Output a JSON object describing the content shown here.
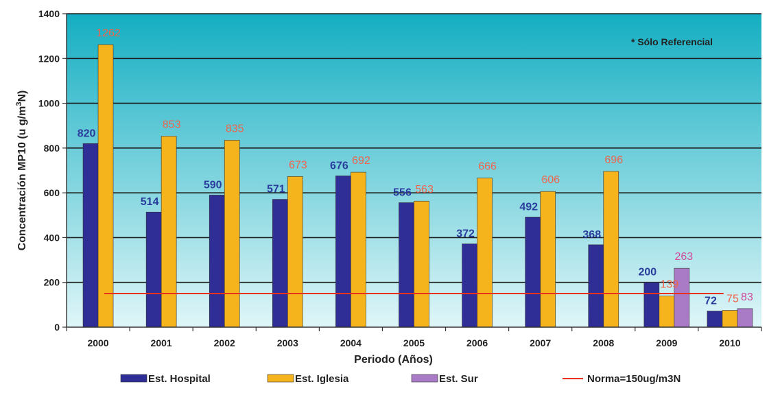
{
  "chart_data": {
    "type": "bar",
    "categories": [
      "2000",
      "2001",
      "2002",
      "2003",
      "2004",
      "2005",
      "2006",
      "2007",
      "2008",
      "2009",
      "2010"
    ],
    "series": [
      {
        "name": "Est. Hospital",
        "color": "#2e2e96",
        "label_color": "#2a3c9c",
        "values": [
          820,
          514,
          590,
          571,
          676,
          556,
          372,
          492,
          368,
          200,
          72
        ]
      },
      {
        "name": "Est. Iglesia",
        "color": "#f5b31c",
        "label_color": "#f0644b",
        "values": [
          1262,
          853,
          835,
          673,
          692,
          563,
          666,
          606,
          696,
          139,
          75
        ]
      },
      {
        "name": "Est. Sur",
        "color": "#a97ac6",
        "label_color": "#d04a9a",
        "values": [
          null,
          null,
          null,
          null,
          null,
          null,
          null,
          null,
          null,
          263,
          83
        ]
      }
    ],
    "data_labels": [
      [
        "820",
        "514",
        "590",
        "571",
        "676",
        "556",
        "372",
        "492",
        "368",
        "200",
        "72"
      ],
      [
        "1262",
        "853",
        "835",
        "673",
        "692",
        "563",
        "666",
        "606",
        "696",
        "139",
        "75"
      ],
      [
        "",
        "",
        "",
        "",
        "",
        "",
        "",
        "",
        "",
        "263",
        "83"
      ]
    ],
    "reference_line": {
      "name": "Norma=150ug/m3N",
      "value": 150,
      "color": "#e8321e"
    },
    "xlabel": "Periodo (Años)",
    "ylabel": "Concentración MP10 (u g/m³N)",
    "ylim": [
      0,
      1400
    ],
    "yticks": [
      0,
      200,
      400,
      600,
      800,
      1000,
      1200,
      1400
    ],
    "annotation": "* Sólo Referencial",
    "grid": true,
    "legend_position": "bottom",
    "plot_gradient": [
      "#14aec2",
      "#dff6f8"
    ]
  }
}
